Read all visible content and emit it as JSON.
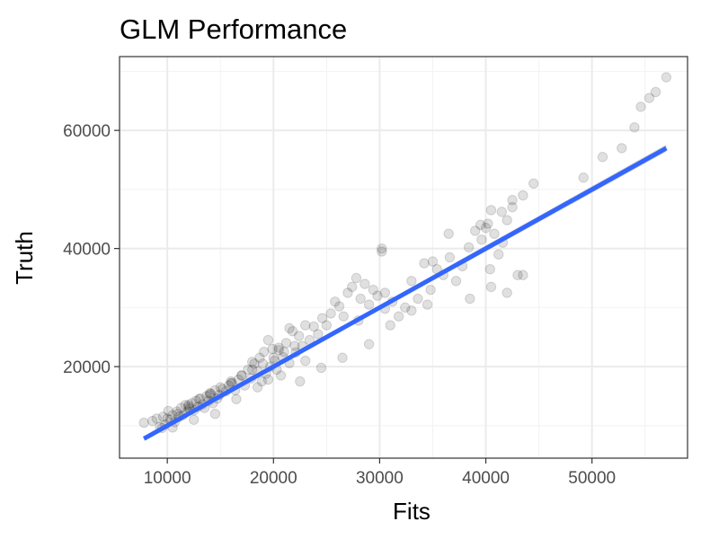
{
  "chart_data": {
    "type": "scatter",
    "title": "GLM Performance",
    "xlabel": "Fits",
    "ylabel": "Truth",
    "xlim": [
      5500,
      59000
    ],
    "ylim": [
      4500,
      72500
    ],
    "x_ticks": [
      10000,
      20000,
      30000,
      40000,
      50000
    ],
    "x_tick_labels": [
      "10000",
      "20000",
      "30000",
      "40000",
      "50000"
    ],
    "y_ticks": [
      20000,
      40000,
      60000
    ],
    "y_tick_labels": [
      "20000",
      "40000",
      "60000"
    ],
    "grid": true,
    "legend": "none",
    "point_color": "#000000",
    "point_opacity": 0.12,
    "smooth_color": "#3366ff",
    "smooth_band_color": "#999999",
    "smooth_line": {
      "x": [
        7800,
        57000
      ],
      "y": [
        7800,
        57000
      ]
    },
    "points": {
      "x": [
        7800,
        8600,
        9000,
        9300,
        9600,
        9800,
        10100,
        10300,
        10500,
        10700,
        10900,
        11100,
        11300,
        11500,
        11700,
        11900,
        12100,
        12300,
        12500,
        12700,
        12900,
        13100,
        13300,
        13500,
        13700,
        13900,
        14100,
        14300,
        14500,
        14700,
        14900,
        15200,
        15500,
        15800,
        16100,
        16400,
        16700,
        17000,
        17300,
        17600,
        17900,
        18200,
        18500,
        18700,
        18900,
        19100,
        19300,
        19500,
        19700,
        19900,
        20100,
        20300,
        20500,
        20700,
        20900,
        21200,
        21500,
        21800,
        22100,
        22400,
        22700,
        23000,
        23400,
        23800,
        24200,
        24600,
        25000,
        25400,
        25800,
        26200,
        26600,
        27000,
        27400,
        27800,
        28200,
        28600,
        29000,
        29400,
        29800,
        30200,
        30200,
        30500,
        31200,
        31800,
        32400,
        33000,
        33600,
        34200,
        34800,
        35400,
        36000,
        36600,
        37200,
        37800,
        38400,
        39000,
        39600,
        40000,
        40200,
        40400,
        40800,
        41200,
        41600,
        42000,
        42500,
        43000,
        43500,
        44500,
        33000,
        34500,
        36500,
        38500,
        40500,
        42000,
        43500,
        49200,
        51000,
        52800,
        54000,
        54600,
        55400,
        56000,
        57000,
        11000,
        13000,
        15000,
        17000,
        19000,
        21000,
        23000,
        12000,
        14000,
        16000,
        18000,
        20000,
        22000,
        9500,
        10500,
        12500,
        14500,
        16500,
        18500,
        19500,
        20500,
        21500,
        28000,
        30500,
        35000,
        39500,
        40500,
        41500,
        42500,
        31000,
        29000,
        26500,
        24500,
        22500,
        18000,
        16000,
        14000,
        12000,
        10000
      ],
      "y": [
        10500,
        10800,
        11200,
        9800,
        11500,
        10200,
        12500,
        11000,
        11800,
        10600,
        12400,
        11500,
        13000,
        11800,
        13500,
        12400,
        12900,
        13800,
        12600,
        14200,
        13200,
        14600,
        13600,
        13000,
        15000,
        14200,
        15400,
        13800,
        16000,
        14600,
        15200,
        16200,
        15800,
        16800,
        17200,
        16000,
        17800,
        18500,
        16800,
        19500,
        18000,
        20500,
        19200,
        21500,
        17500,
        22500,
        18800,
        24500,
        20000,
        23000,
        21000,
        19500,
        22800,
        18500,
        21600,
        24000,
        20600,
        26000,
        22400,
        25200,
        23500,
        27000,
        24500,
        26800,
        25500,
        28200,
        27000,
        29000,
        31000,
        30200,
        28500,
        32500,
        33500,
        35000,
        31500,
        34000,
        30500,
        33000,
        32000,
        39500,
        40000,
        32500,
        31000,
        28500,
        30000,
        34500,
        31500,
        37500,
        33000,
        36500,
        35500,
        38500,
        34500,
        37000,
        40200,
        43000,
        41500,
        43500,
        44200,
        36500,
        42500,
        39000,
        41000,
        44800,
        47000,
        35500,
        49000,
        51000,
        29500,
        30500,
        42500,
        31500,
        33500,
        32500,
        35500,
        52000,
        55500,
        57000,
        60500,
        64000,
        65500,
        66500,
        69000,
        12000,
        14500,
        16500,
        18500,
        20500,
        22500,
        21000,
        13500,
        15500,
        17500,
        19500,
        21500,
        23500,
        9600,
        9700,
        11000,
        12000,
        14500,
        16500,
        17800,
        23200,
        26500,
        27800,
        29800,
        37800,
        44000,
        46500,
        46200,
        48200,
        27000,
        23800,
        21500,
        19800,
        17500,
        20800,
        17200,
        15200,
        13200,
        11200
      ]
    }
  }
}
